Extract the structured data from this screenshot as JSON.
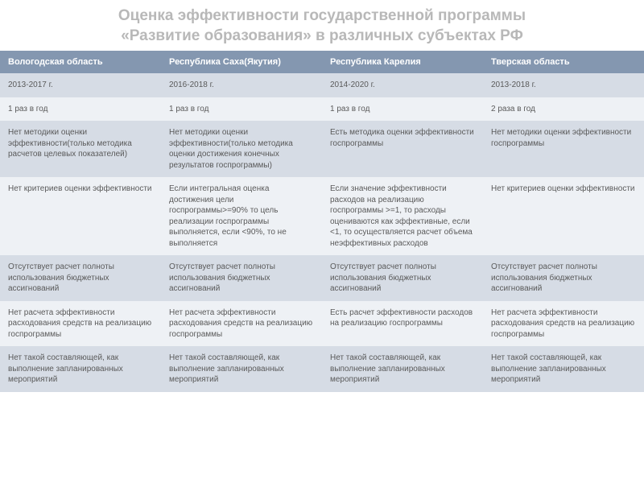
{
  "title_color": "#b8b8b8",
  "title_lines": [
    "Оценка эффективности государственной программы",
    "«Развитие образования» в различных субъектах РФ"
  ],
  "table": {
    "header_bg": "#8497b0",
    "header_text": "#ffffff",
    "row_even_bg": "#d6dce5",
    "row_even_text": "#5a5a5a",
    "row_odd_bg": "#eef1f5",
    "row_odd_text": "#5a5a5a",
    "columns": [
      "Вологодская область",
      "Республика Саха(Якутия)",
      "Республика Карелия",
      "Тверская область"
    ],
    "rows": [
      [
        "2013-2017 г.",
        "2016-2018 г.",
        "2014-2020 г.",
        "2013-2018 г."
      ],
      [
        "1 раз в год",
        "1 раз в год",
        "1 раз в год",
        "2 раза в год"
      ],
      [
        "Нет методики оценки эффективности(только методика расчетов целевых показателей)",
        "Нет методики оценки эффективности(только методика оценки достижения конечных результатов госпрограммы)",
        "Есть методика оценки эффективности госпрограммы",
        "Нет методики оценки эффективности госпрограммы"
      ],
      [
        "Нет критериев оценки эффективности",
        "Если интегральная оценка достижения цели госпрограммы>=90% то цель реализации госпрограммы выполняется, если <90%, то не выполняется",
        "Если значение эффективности расходов на реализацию госпрограммы >=1, то расходы оцениваются как эффективные, если <1, то осуществляется расчет объема неэффективных расходов",
        "Нет критериев оценки эффективности"
      ],
      [
        "Отсутствует расчет полноты использования бюджетных ассигнований",
        "Отсутствует расчет полноты использования бюджетных ассигнований",
        "Отсутствует расчет полноты использования бюджетных ассигнований",
        "Отсутствует расчет полноты использования бюджетных ассигнований"
      ],
      [
        "Нет расчета эффективности расходования средств на реализацию госпрограммы",
        "Нет расчета эффективности расходования средств на реализацию госпрограммы",
        "Есть расчет эффективности расходов на реализацию госпрограммы",
        "Нет расчета эффективности расходования средств на реализацию госпрограммы"
      ],
      [
        "Нет такой составляющей, как выполнение запланированных мероприятий",
        "Нет такой составляющей, как выполнение запланированных мероприятий",
        "Нет такой составляющей, как выполнение запланированных мероприятий",
        "Нет такой составляющей, как выполнение запланированных мероприятий"
      ]
    ]
  }
}
